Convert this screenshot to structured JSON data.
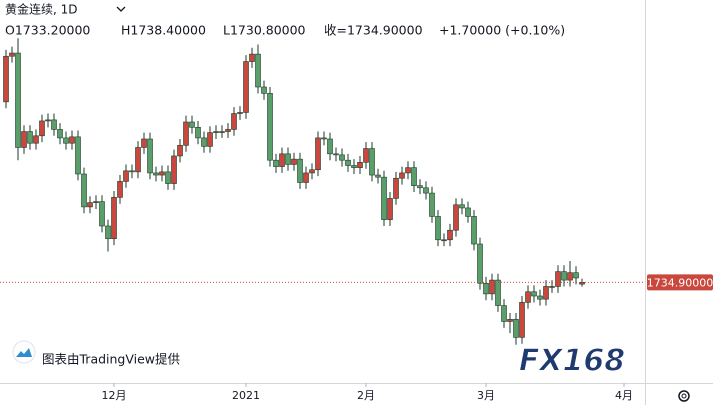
{
  "chart_data": {
    "type": "candlestick",
    "title": "黄金连续, 1D",
    "ohlc_legend": {
      "open": "O1733.20000",
      "high": "H1738.40000",
      "low": "L1730.80000",
      "close": "收=1734.90000",
      "change": "+1.70000 (+0.10%)"
    },
    "up_color": "#c9473d",
    "down_color": "#5a9e6a",
    "open": [
      1905,
      1948,
      1951,
      1862,
      1877,
      1866,
      1873,
      1887,
      1888,
      1879,
      1871,
      1866,
      1872,
      1837,
      1806,
      1810,
      1811,
      1788,
      1776,
      1815,
      1830,
      1840,
      1839,
      1862,
      1870,
      1838,
      1836,
      1839,
      1828,
      1854,
      1864,
      1886,
      1881,
      1871,
      1863,
      1876,
      1877,
      1877,
      1879,
      1894,
      1895,
      1943,
      1950,
      1919,
      1913,
      1850,
      1844,
      1856,
      1846,
      1851,
      1829,
      1838,
      1841,
      1871,
      1870,
      1856,
      1855,
      1850,
      1845,
      1843,
      1848,
      1861,
      1836,
      1834,
      1794,
      1814,
      1833,
      1838,
      1843,
      1826,
      1824,
      1819,
      1797,
      1775,
      1775,
      1784,
      1808,
      1805,
      1797,
      1771,
      1734,
      1724,
      1737,
      1713,
      1698,
      1700,
      1683,
      1716,
      1726,
      1722,
      1719,
      1731,
      1731,
      1745,
      1737,
      1744,
      1733.2
    ],
    "high": [
      1954,
      1957,
      1965,
      1883,
      1883,
      1879,
      1893,
      1894,
      1894,
      1885,
      1877,
      1878,
      1878,
      1843,
      1816,
      1817,
      1817,
      1794,
      1821,
      1836,
      1846,
      1846,
      1868,
      1876,
      1876,
      1844,
      1845,
      1845,
      1860,
      1870,
      1892,
      1892,
      1887,
      1877,
      1882,
      1883,
      1883,
      1885,
      1900,
      1901,
      1949,
      1956,
      1959,
      1925,
      1919,
      1856,
      1862,
      1862,
      1857,
      1857,
      1844,
      1847,
      1877,
      1877,
      1876,
      1862,
      1861,
      1856,
      1851,
      1854,
      1867,
      1867,
      1842,
      1840,
      1820,
      1839,
      1844,
      1849,
      1849,
      1832,
      1830,
      1825,
      1803,
      1781,
      1790,
      1814,
      1814,
      1811,
      1803,
      1777,
      1740,
      1743,
      1743,
      1719,
      1706,
      1706,
      1722,
      1732,
      1732,
      1728,
      1737,
      1737,
      1751,
      1751,
      1755,
      1750,
      1738.4
    ],
    "low": [
      1899,
      1942,
      1850,
      1856,
      1860,
      1860,
      1867,
      1881,
      1873,
      1865,
      1860,
      1860,
      1831,
      1800,
      1800,
      1804,
      1782,
      1764,
      1770,
      1809,
      1824,
      1833,
      1833,
      1856,
      1832,
      1830,
      1830,
      1822,
      1822,
      1848,
      1858,
      1875,
      1865,
      1857,
      1857,
      1870,
      1871,
      1871,
      1873,
      1888,
      1889,
      1937,
      1913,
      1907,
      1844,
      1838,
      1838,
      1840,
      1840,
      1823,
      1823,
      1832,
      1835,
      1864,
      1850,
      1849,
      1844,
      1839,
      1837,
      1837,
      1842,
      1830,
      1828,
      1788,
      1788,
      1808,
      1827,
      1832,
      1820,
      1818,
      1813,
      1791,
      1769,
      1769,
      1769,
      1778,
      1799,
      1791,
      1765,
      1728,
      1718,
      1718,
      1707,
      1692,
      1687,
      1676,
      1677,
      1710,
      1716,
      1713,
      1713,
      1725,
      1725,
      1731,
      1731,
      1733,
      1730.8
    ],
    "close": [
      1948,
      1951,
      1862,
      1877,
      1866,
      1873,
      1887,
      1888,
      1879,
      1871,
      1866,
      1872,
      1837,
      1806,
      1810,
      1811,
      1788,
      1776,
      1815,
      1830,
      1840,
      1839,
      1862,
      1870,
      1838,
      1836,
      1839,
      1828,
      1854,
      1864,
      1886,
      1881,
      1871,
      1863,
      1876,
      1877,
      1877,
      1879,
      1894,
      1895,
      1943,
      1950,
      1919,
      1913,
      1850,
      1844,
      1856,
      1846,
      1851,
      1829,
      1838,
      1841,
      1871,
      1870,
      1856,
      1855,
      1850,
      1845,
      1843,
      1848,
      1861,
      1836,
      1834,
      1794,
      1814,
      1833,
      1838,
      1843,
      1826,
      1824,
      1819,
      1797,
      1775,
      1775,
      1784,
      1808,
      1805,
      1797,
      1771,
      1734,
      1724,
      1737,
      1713,
      1698,
      1700,
      1683,
      1716,
      1726,
      1722,
      1719,
      1731,
      1731,
      1745,
      1737,
      1744,
      1739,
      1734.9
    ],
    "xlim": [
      -1,
      106.5
    ],
    "ylim": [
      1640,
      2001
    ],
    "xticks": [
      {
        "value": 18,
        "label": "12月"
      },
      {
        "value": 40,
        "label": "2021"
      },
      {
        "value": 60,
        "label": "2月"
      },
      {
        "value": 80,
        "label": "3月"
      },
      {
        "value": 103,
        "label": "4月"
      }
    ],
    "price_line": {
      "value": 1734.9,
      "label": "1734.90000",
      "color": "#c9473d"
    },
    "watermark": "图表由TradingView提供",
    "logo": "FX168"
  }
}
